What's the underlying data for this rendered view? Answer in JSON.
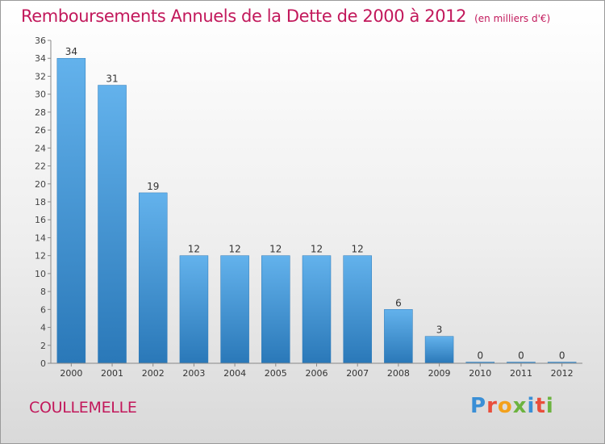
{
  "title": "Remboursements Annuels de la Dette de 2000 à 2012",
  "unit_note": "(en milliers d'€)",
  "commune": "COULLEMELLE",
  "logo": {
    "text": "Proxiti",
    "letters": [
      {
        "ch": "P",
        "color": "#3a8fd6"
      },
      {
        "ch": "r",
        "color": "#e94e3c"
      },
      {
        "ch": "o",
        "color": "#f3a11c"
      },
      {
        "ch": "x",
        "color": "#6cb33f"
      },
      {
        "ch": "i",
        "color": "#3a8fd6"
      },
      {
        "ch": "t",
        "color": "#e94e3c"
      },
      {
        "ch": "i",
        "color": "#6cb33f"
      }
    ]
  },
  "chart_data": {
    "type": "bar",
    "categories": [
      "2000",
      "2001",
      "2002",
      "2003",
      "2004",
      "2005",
      "2006",
      "2007",
      "2008",
      "2009",
      "2010",
      "2011",
      "2012"
    ],
    "values": [
      34,
      31,
      19,
      12,
      12,
      12,
      12,
      12,
      6,
      3,
      0,
      0,
      0
    ],
    "ylim": [
      0,
      36
    ],
    "yticks": [
      0,
      2,
      4,
      6,
      8,
      10,
      12,
      14,
      16,
      18,
      20,
      22,
      24,
      26,
      28,
      30,
      32,
      34,
      36
    ],
    "grid": false,
    "bar_color_top": "#63b2ec",
    "bar_color_bottom": "#2a78b8"
  }
}
